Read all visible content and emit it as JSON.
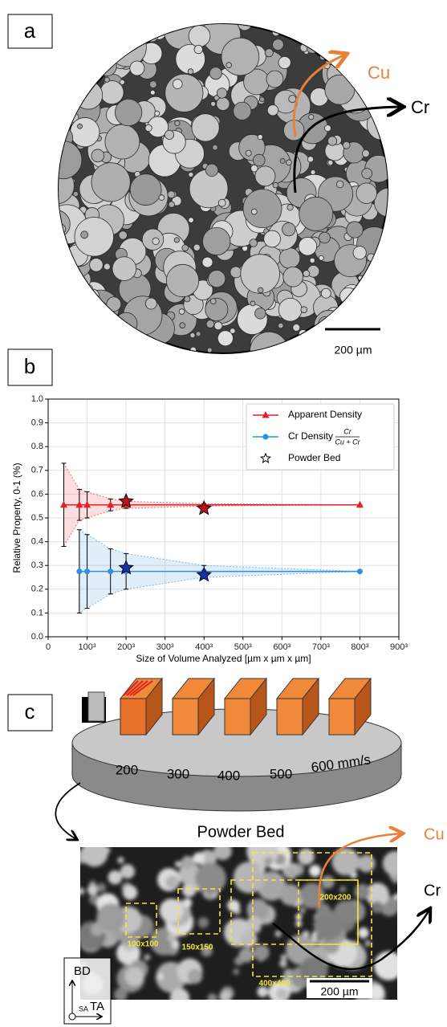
{
  "panels": {
    "a": {
      "label": "a",
      "arrow_cu": "Cu",
      "arrow_cr": "Cr",
      "scale": "200 µm"
    },
    "b": {
      "label": "b"
    },
    "c": {
      "label": "c",
      "speeds": [
        "200",
        "300",
        "400",
        "500",
        "600 mm/s"
      ],
      "title": "Powder Bed",
      "boxes": [
        "200x200",
        "100x100",
        "150x150",
        "400x400"
      ],
      "arrow_cu": "Cu",
      "arrow_cr": "Cr",
      "scale": "200 µm",
      "axes": {
        "bd": "BD",
        "sa": "SA",
        "ta": "TA"
      }
    }
  },
  "chart_data": {
    "type": "line",
    "x_label": "Size of Volume Analyzed [µm x µm x µm]",
    "y_label": "Relative Property, 0-1 (%)",
    "xlim": [
      0,
      900
    ],
    "ylim": [
      0,
      1
    ],
    "xticks": [
      0,
      {
        "value": 100,
        "label": "100³"
      },
      {
        "value": 200,
        "label": "200³"
      },
      {
        "value": 300,
        "label": "300³"
      },
      {
        "value": 400,
        "label": "400³"
      },
      {
        "value": 500,
        "label": "500³"
      },
      {
        "value": 600,
        "label": "600³"
      },
      {
        "value": 700,
        "label": "700³"
      },
      {
        "value": 800,
        "label": "800³"
      },
      {
        "value": 900,
        "label": "900³"
      }
    ],
    "yticks": [
      {
        "value": 0,
        "label": "0.0"
      },
      0.1,
      0.2,
      0.3,
      0.4,
      0.5,
      0.6,
      0.7,
      0.8,
      0.9,
      {
        "value": 1,
        "label": "1.0"
      }
    ],
    "grid": true,
    "legend": "upper right",
    "series": [
      {
        "name": "Apparent Density",
        "color": "#e8202a",
        "marker": "triangle",
        "x": [
          40,
          80,
          100,
          160,
          200,
          400,
          800
        ],
        "values": [
          0.555,
          0.555,
          0.555,
          0.555,
          0.555,
          0.555,
          0.555
        ],
        "lower": [
          0.38,
          0.49,
          0.5,
          0.53,
          0.54,
          0.55,
          0.555
        ],
        "upper": [
          0.73,
          0.62,
          0.61,
          0.58,
          0.57,
          0.56,
          0.555
        ]
      },
      {
        "name": "Cr Density",
        "name_fraction": {
          "numerator": "Cr",
          "denominator": "Cu + Cr"
        },
        "color": "#2f8fe0",
        "marker": "circle",
        "x": [
          40,
          80,
          100,
          160,
          200,
          400,
          800
        ],
        "values": [
          null,
          0.275,
          0.275,
          0.275,
          0.275,
          0.275,
          0.275
        ],
        "lower": [
          null,
          0.1,
          0.12,
          0.18,
          0.2,
          0.25,
          0.275
        ],
        "upper": [
          null,
          0.45,
          0.43,
          0.37,
          0.35,
          0.3,
          0.275
        ]
      },
      {
        "name": "Powder Bed",
        "color": "#000000",
        "marker": "star",
        "x": [
          200,
          400,
          200,
          400
        ],
        "values": [
          0.57,
          0.54,
          0.29,
          0.26
        ],
        "point_colors": [
          "#c01018",
          "#c01018",
          "#1c2fb0",
          "#1c2fb0"
        ]
      }
    ]
  }
}
